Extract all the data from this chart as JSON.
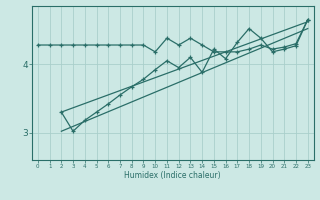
{
  "xlabel": "Humidex (Indice chaleur)",
  "bg_color": "#cce8e4",
  "line_color": "#2a6e68",
  "grid_color": "#aacfcb",
  "y_ticks": [
    3,
    4
  ],
  "ylim": [
    2.6,
    4.85
  ],
  "xlim": [
    -0.5,
    23.5
  ],
  "series1_x": [
    0,
    1,
    2,
    3,
    4,
    5,
    6,
    7,
    8,
    9,
    10,
    11,
    12,
    13,
    14,
    15,
    16,
    17,
    18,
    19,
    20,
    21,
    22,
    23
  ],
  "series1_y": [
    4.28,
    4.28,
    4.28,
    4.28,
    4.28,
    4.28,
    4.28,
    4.28,
    4.28,
    4.28,
    4.18,
    4.38,
    4.28,
    4.38,
    4.28,
    4.18,
    4.18,
    4.18,
    4.22,
    4.28,
    4.22,
    4.25,
    4.3,
    4.65
  ],
  "series2_x": [
    2,
    3,
    4,
    5,
    6,
    7,
    8,
    9,
    10,
    11,
    12,
    13,
    14,
    15,
    16,
    17,
    18,
    19,
    20,
    21,
    22,
    23
  ],
  "series2_y": [
    3.3,
    3.02,
    3.18,
    3.3,
    3.42,
    3.55,
    3.67,
    3.78,
    3.92,
    4.05,
    3.95,
    4.1,
    3.88,
    4.22,
    4.08,
    4.32,
    4.52,
    4.38,
    4.18,
    4.22,
    4.27,
    4.65
  ],
  "series3_x": [
    2,
    23
  ],
  "series3_y": [
    3.3,
    4.62
  ],
  "series4_x": [
    2,
    23
  ],
  "series4_y": [
    3.02,
    4.52
  ]
}
